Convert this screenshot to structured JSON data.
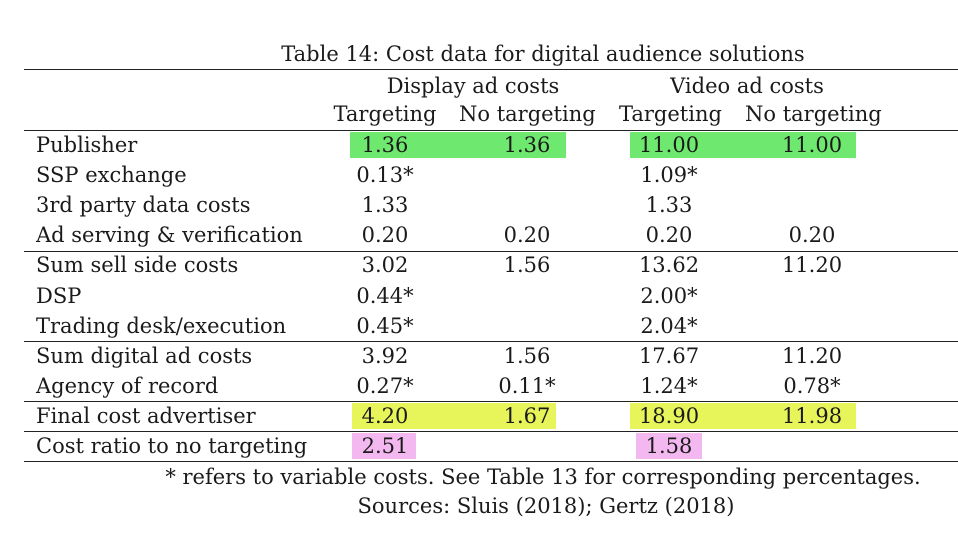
{
  "table": {
    "caption": "Table 14: Cost data for digital audience solutions",
    "groups": [
      "Display ad costs",
      "Video ad costs"
    ],
    "columns": [
      "Targeting",
      "No targeting",
      "Targeting",
      "No targeting"
    ],
    "rows": [
      {
        "label": "Publisher",
        "cells": [
          "1.36",
          "1.36",
          "11.00",
          "11.00"
        ]
      },
      {
        "label": "SSP exchange",
        "cells": [
          "0.13*",
          "",
          "1.09*",
          ""
        ]
      },
      {
        "label": "3rd party data costs",
        "cells": [
          "1.33",
          "",
          "1.33",
          ""
        ]
      },
      {
        "label": "Ad serving & verification",
        "cells": [
          "0.20",
          "0.20",
          "0.20",
          "0.20"
        ]
      },
      {
        "label": "Sum sell side costs",
        "cells": [
          "3.02",
          "1.56",
          "13.62",
          "11.20"
        ]
      },
      {
        "label": "DSP",
        "cells": [
          "0.44*",
          "",
          "2.00*",
          ""
        ]
      },
      {
        "label": "Trading desk/execution",
        "cells": [
          "0.45*",
          "",
          "2.04*",
          ""
        ]
      },
      {
        "label": "Sum digital ad costs",
        "cells": [
          "3.92",
          "1.56",
          "17.67",
          "11.20"
        ]
      },
      {
        "label": "Agency of record",
        "cells": [
          "0.27*",
          "0.11*",
          "1.24*",
          "0.78*"
        ]
      },
      {
        "label": "Final cost advertiser",
        "cells": [
          "4.20",
          "1.67",
          "18.90",
          "11.98"
        ]
      },
      {
        "label": "Cost ratio to no targeting",
        "cells": [
          "2.51",
          "",
          "1.58",
          ""
        ]
      }
    ],
    "footnote": "* refers to variable costs. See Table 13 for corresponding percentages.",
    "sources": "Sources: Sluis (2018); Gertz (2018)"
  },
  "highlight_colors": {
    "green": "#6ee86e",
    "yellow": "#e8f55a",
    "pink": "#f4b8f0"
  }
}
